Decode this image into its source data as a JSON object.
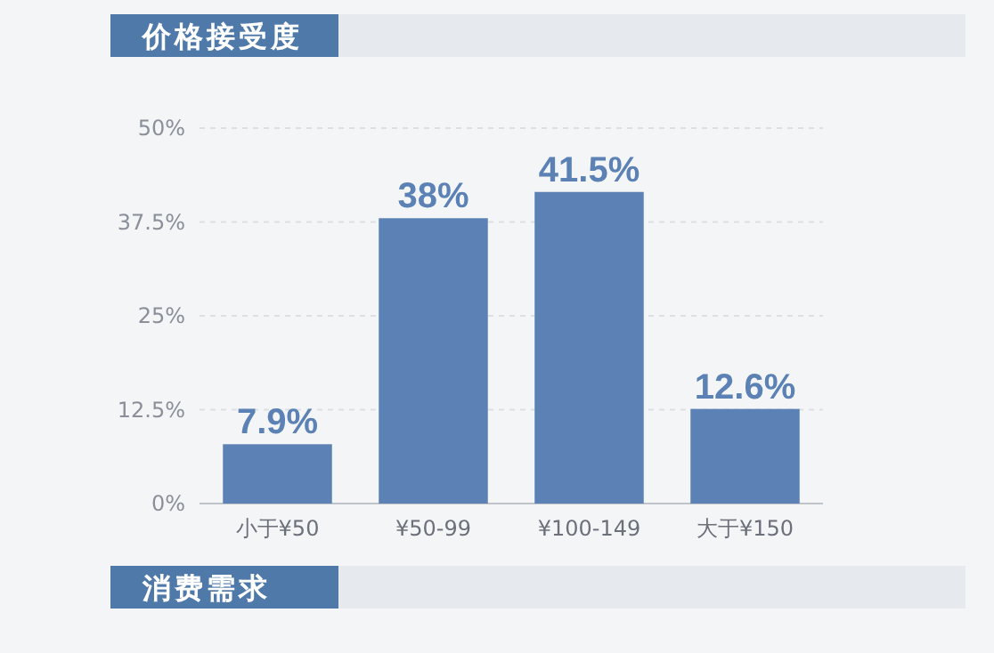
{
  "chart_data": {
    "type": "bar",
    "title": "价格接受度",
    "annotations": [
      "消费需求"
    ],
    "categories": [
      "小于¥50",
      "¥50-99",
      "¥100-149",
      "大于¥150"
    ],
    "values": [
      7.9,
      38,
      41.5,
      12.6
    ],
    "value_labels": [
      "7.9%",
      "38%",
      "41.5%",
      "12.6%"
    ],
    "color": "#5b81b5",
    "ylim": [
      0,
      50
    ],
    "yticks": [
      {
        "value": 0,
        "label": "0%"
      },
      {
        "value": 12.5,
        "label": "12.5%"
      },
      {
        "value": 25,
        "label": "25%"
      },
      {
        "value": 37.5,
        "label": "37.5%"
      },
      {
        "value": 50,
        "label": "50%"
      }
    ],
    "grid": "y"
  }
}
